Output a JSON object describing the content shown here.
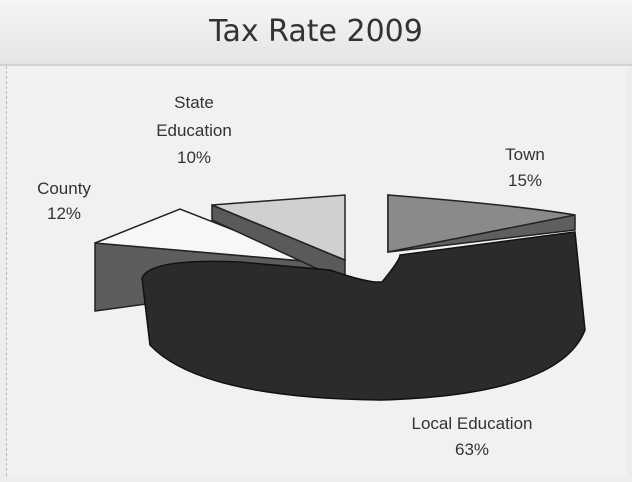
{
  "title": "Tax Rate 2009",
  "chart_data": {
    "type": "pie",
    "title": "Tax Rate 2009",
    "slices": [
      {
        "label": "Local Education",
        "value": 63,
        "value_label": "63%",
        "color": "#2b2b2b"
      },
      {
        "label": "County",
        "value": 12,
        "value_label": "12%",
        "color": "#f7f7f7"
      },
      {
        "label": "State Education",
        "value": 10,
        "value_label": "10%",
        "color": "#d0d0d0"
      },
      {
        "label": "Town",
        "value": 15,
        "value_label": "15%",
        "color": "#8a8a8a"
      }
    ],
    "style": "3d-exploded"
  }
}
